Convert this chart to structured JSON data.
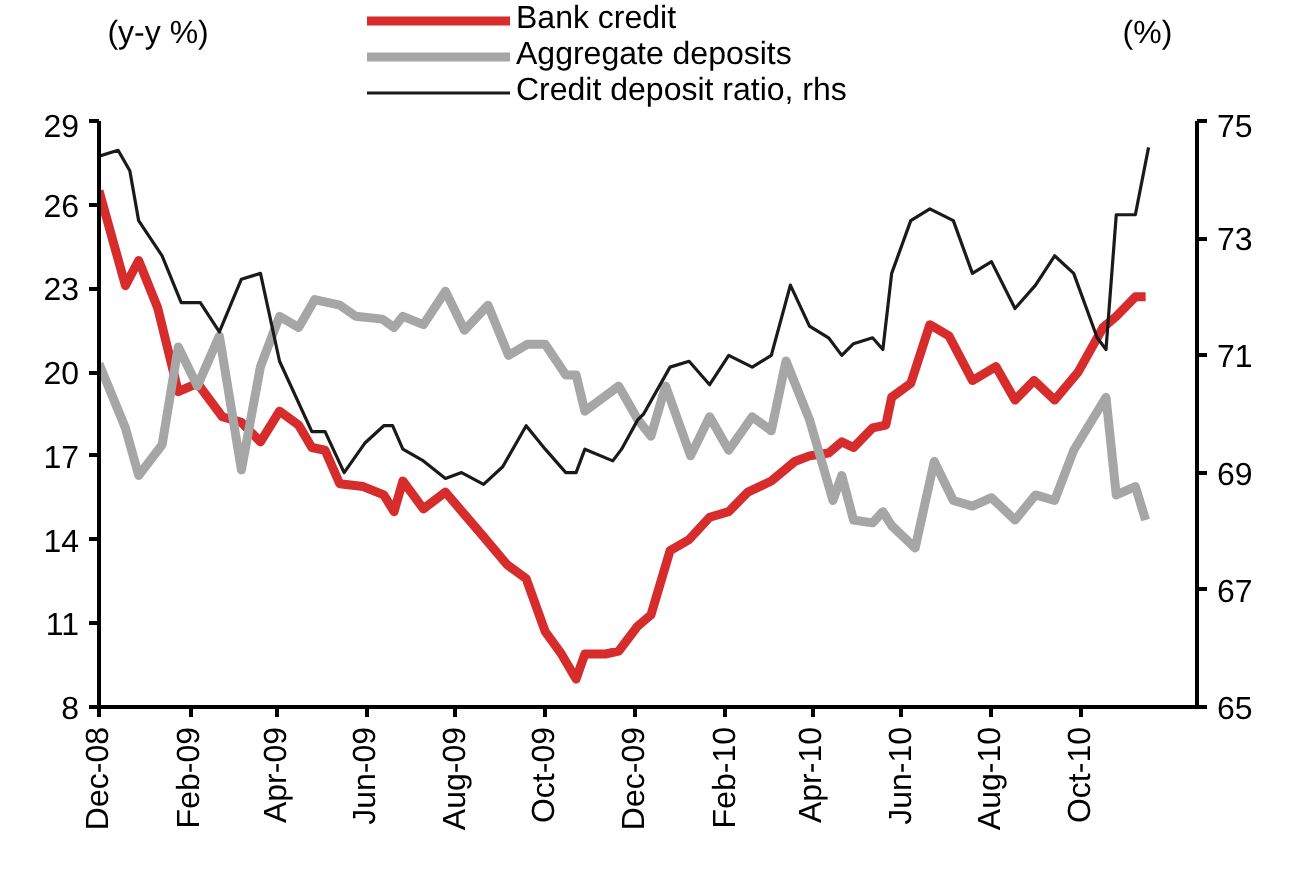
{
  "chart_data": {
    "type": "line",
    "ylabel": "(y-y %)",
    "y2label": "(%)",
    "legend": "top",
    "grid": false,
    "marker": "none",
    "xlim": [
      "2008-12-01",
      "2010-12-19"
    ],
    "xticks": [
      {
        "value": "2008-12-01",
        "label": "Dec-08"
      },
      {
        "value": "2009-02-01",
        "label": "Feb-09"
      },
      {
        "value": "2009-04-01",
        "label": "Apr-09"
      },
      {
        "value": "2009-06-01",
        "label": "Jun-09"
      },
      {
        "value": "2009-08-01",
        "label": "Aug-09"
      },
      {
        "value": "2009-10-01",
        "label": "Oct-09"
      },
      {
        "value": "2009-12-01",
        "label": "Dec-09"
      },
      {
        "value": "2010-02-01",
        "label": "Feb-10"
      },
      {
        "value": "2010-04-01",
        "label": "Apr-10"
      },
      {
        "value": "2010-06-01",
        "label": "Jun-10"
      },
      {
        "value": "2010-08-01",
        "label": "Aug-10"
      },
      {
        "value": "2010-10-01",
        "label": "Oct-10"
      }
    ],
    "ylim": [
      8,
      29
    ],
    "yticks": [
      8,
      11,
      14,
      17,
      20,
      23,
      26,
      29
    ],
    "y2lim": [
      65,
      75
    ],
    "y2ticks": [
      65,
      67,
      69,
      71,
      73,
      75
    ],
    "series": [
      {
        "name": "Bank credit",
        "color": "#d62c2c",
        "x": [
          "2008-12-01",
          "2008-12-19",
          "2008-12-28",
          "2009-01-10",
          "2009-01-24",
          "2009-02-06",
          "2009-02-23",
          "2009-03-08",
          "2009-03-21",
          "2009-04-03",
          "2009-04-16",
          "2009-04-25",
          "2009-05-04",
          "2009-05-14",
          "2009-05-30",
          "2009-06-13",
          "2009-06-20",
          "2009-06-26",
          "2009-07-10",
          "2009-07-25",
          "2009-08-07",
          "2009-08-20",
          "2009-09-05",
          "2009-09-18",
          "2009-10-01",
          "2009-10-12",
          "2009-10-22",
          "2009-10-28",
          "2009-11-11",
          "2009-11-20",
          "2009-12-03",
          "2009-12-12",
          "2009-12-25",
          "2010-01-07",
          "2010-01-21",
          "2010-02-03",
          "2010-02-16",
          "2010-03-04",
          "2010-03-20",
          "2010-03-30",
          "2010-04-12",
          "2010-04-21",
          "2010-04-29",
          "2010-05-12",
          "2010-05-21",
          "2010-05-25",
          "2010-06-07",
          "2010-06-20",
          "2010-07-03",
          "2010-07-19",
          "2010-08-04",
          "2010-08-17",
          "2010-08-30",
          "2010-09-13",
          "2010-09-29",
          "2010-10-16",
          "2010-10-25",
          "2010-11-07",
          "2010-11-14"
        ],
        "values": [
          26.5,
          23.1,
          24.0,
          22.3,
          19.3,
          19.6,
          18.4,
          18.2,
          17.5,
          18.6,
          18.1,
          17.3,
          17.2,
          16.0,
          15.9,
          15.6,
          15.0,
          16.1,
          15.1,
          15.7,
          14.9,
          14.1,
          13.1,
          12.6,
          10.7,
          9.9,
          9.0,
          9.9,
          9.9,
          10.0,
          10.9,
          11.3,
          13.6,
          14.0,
          14.8,
          15.0,
          15.7,
          16.1,
          16.8,
          17.0,
          17.1,
          17.5,
          17.3,
          18.0,
          18.1,
          19.1,
          19.6,
          21.7,
          21.3,
          19.7,
          20.2,
          19.0,
          19.7,
          19.0,
          20.0,
          21.6,
          22.0,
          22.7,
          22.7
        ]
      },
      {
        "name": "Aggregate deposits",
        "color": "#a6a6a6",
        "x": [
          "2008-12-01",
          "2008-12-19",
          "2008-12-28",
          "2009-01-13",
          "2009-01-24",
          "2009-02-06",
          "2009-02-21",
          "2009-03-08",
          "2009-03-21",
          "2009-04-03",
          "2009-04-16",
          "2009-04-27",
          "2009-05-14",
          "2009-05-25",
          "2009-06-12",
          "2009-06-20",
          "2009-06-26",
          "2009-07-10",
          "2009-07-25",
          "2009-08-07",
          "2009-08-23",
          "2009-09-06",
          "2009-09-19",
          "2009-10-01",
          "2009-10-15",
          "2009-10-22",
          "2009-10-28",
          "2009-11-20",
          "2009-12-03",
          "2009-12-12",
          "2009-12-22",
          "2010-01-08",
          "2010-01-21",
          "2010-02-03",
          "2010-02-19",
          "2010-03-04",
          "2010-03-14",
          "2010-03-30",
          "2010-04-15",
          "2010-04-21",
          "2010-04-29",
          "2010-05-12",
          "2010-05-19",
          "2010-05-25",
          "2010-06-10",
          "2010-06-23",
          "2010-07-06",
          "2010-07-19",
          "2010-08-01",
          "2010-08-17",
          "2010-08-31",
          "2010-09-13",
          "2010-09-26",
          "2010-10-18",
          "2010-10-25",
          "2010-11-07",
          "2010-11-14"
        ],
        "values": [
          20.3,
          18.0,
          16.3,
          17.4,
          20.9,
          19.5,
          21.3,
          16.5,
          20.2,
          22.0,
          21.6,
          22.6,
          22.4,
          22.0,
          21.9,
          21.6,
          22.0,
          21.7,
          22.9,
          21.5,
          22.4,
          20.6,
          21.0,
          21.0,
          19.9,
          19.9,
          18.6,
          19.5,
          18.3,
          17.7,
          19.5,
          17.0,
          18.4,
          17.2,
          18.4,
          17.9,
          20.4,
          18.3,
          15.4,
          16.3,
          14.7,
          14.6,
          15.0,
          14.5,
          13.7,
          16.8,
          15.4,
          15.2,
          15.5,
          14.7,
          15.6,
          15.4,
          17.2,
          19.1,
          15.6,
          15.9,
          14.7
        ]
      },
      {
        "name": "Credit deposit ratio, rhs",
        "color": "#1a1a1a",
        "axis": "y2",
        "x": [
          "2008-12-01",
          "2008-12-14",
          "2008-12-22",
          "2008-12-28",
          "2009-01-13",
          "2009-01-26",
          "2009-02-08",
          "2009-02-21",
          "2009-03-08",
          "2009-03-21",
          "2009-04-03",
          "2009-04-25",
          "2009-05-04",
          "2009-05-17",
          "2009-05-31",
          "2009-06-13",
          "2009-06-19",
          "2009-06-26",
          "2009-07-10",
          "2009-07-25",
          "2009-08-05",
          "2009-08-20",
          "2009-09-02",
          "2009-09-18",
          "2009-10-01",
          "2009-10-15",
          "2009-10-22",
          "2009-10-28",
          "2009-11-16",
          "2009-11-22",
          "2009-12-03",
          "2009-12-07",
          "2009-12-25",
          "2010-01-07",
          "2010-01-21",
          "2010-02-03",
          "2010-02-19",
          "2010-03-04",
          "2010-03-17",
          "2010-03-30",
          "2010-04-12",
          "2010-04-21",
          "2010-04-29",
          "2010-05-12",
          "2010-05-19",
          "2010-05-25",
          "2010-06-07",
          "2010-06-20",
          "2010-07-06",
          "2010-07-19",
          "2010-08-01",
          "2010-08-17",
          "2010-08-31",
          "2010-09-13",
          "2010-09-26",
          "2010-10-12",
          "2010-10-18",
          "2010-10-25",
          "2010-11-07",
          "2010-11-16"
        ],
        "values": [
          74.4,
          74.5,
          74.15,
          73.3,
          72.7,
          71.9,
          71.9,
          71.4,
          72.3,
          72.4,
          70.9,
          69.7,
          69.7,
          69.0,
          69.5,
          69.8,
          69.8,
          69.4,
          69.2,
          68.9,
          69.0,
          68.8,
          69.1,
          69.8,
          69.4,
          69.0,
          69.0,
          69.4,
          69.2,
          69.4,
          69.9,
          70.0,
          70.8,
          70.9,
          70.5,
          71.0,
          70.8,
          71.0,
          72.2,
          71.5,
          71.3,
          71.0,
          71.2,
          71.3,
          71.1,
          72.4,
          73.3,
          73.5,
          73.3,
          72.4,
          72.6,
          71.8,
          72.2,
          72.7,
          72.4,
          71.3,
          71.1,
          73.4,
          73.4,
          74.55
        ]
      }
    ]
  }
}
